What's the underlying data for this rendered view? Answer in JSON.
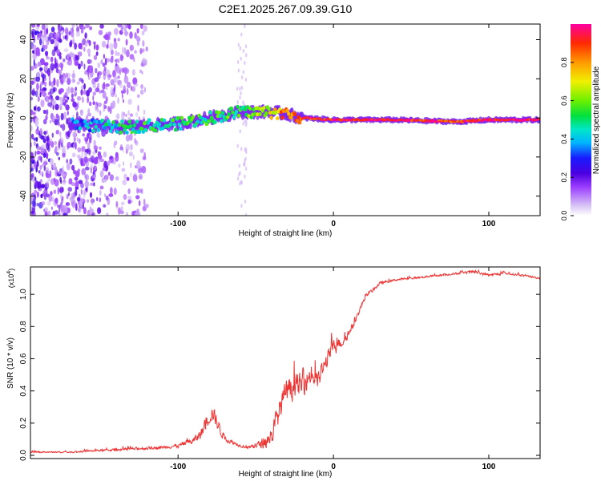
{
  "figure": {
    "title": "C2E1.2025.267.09.39.G10"
  },
  "chart_data": [
    {
      "type": "heatmap",
      "title": "C2E1.2025.267.09.39.G10",
      "xlabel": "Height of straight line (km)",
      "ylabel": "Frequency (Hz)",
      "xlim": [
        -195,
        133
      ],
      "ylim": [
        -50,
        48
      ],
      "xticks": [
        -100,
        0,
        100
      ],
      "yticks": [
        -40,
        -20,
        0,
        20,
        40
      ],
      "xtick_labels": [
        "-100",
        "0",
        "100"
      ],
      "ytick_labels": [
        "-40",
        "-20",
        "0",
        "20",
        "40"
      ],
      "colorbar": {
        "label": "Normalized spectral amplitude",
        "range": [
          0,
          1
        ],
        "ticks": [
          0.0,
          0.2,
          0.4,
          0.6,
          0.8
        ],
        "tick_labels": [
          "0.0",
          "0.2",
          "0.4",
          "0.6",
          "0.8"
        ]
      },
      "ridge": {
        "description_points_x": [
          -165,
          -140,
          -120,
          -100,
          -80,
          -60,
          -40,
          -30,
          -20,
          0,
          40,
          80,
          100,
          133
        ],
        "frequency_hz": [
          -3,
          -5,
          -4,
          -3,
          0,
          3,
          3,
          2,
          0,
          -1,
          -1,
          -2,
          -1,
          -1
        ],
        "amplitude": [
          0.35,
          0.45,
          0.5,
          0.5,
          0.5,
          0.55,
          0.7,
          0.85,
          0.9,
          0.92,
          0.95,
          0.9,
          0.95,
          0.95
        ]
      },
      "noise_region_x": [
        -195,
        -120
      ]
    },
    {
      "type": "line",
      "xlabel": "Height of straight line (km)",
      "ylabel": "SNR (10 * v/v)",
      "y_scale_label": "(x10",
      "y_scale_exponent": "4",
      "xlim": [
        -195,
        133
      ],
      "ylim": [
        -0.02,
        1.17
      ],
      "xticks": [
        -100,
        0,
        100
      ],
      "yticks": [
        0.0,
        0.2,
        0.4,
        0.6,
        0.8,
        1.0
      ],
      "xtick_labels": [
        "-100",
        "0",
        "100"
      ],
      "ytick_labels": [
        "0.0",
        "0.2",
        "0.4",
        "0.6",
        "0.8",
        "1.0"
      ],
      "series": [
        {
          "name": "SNR",
          "color": "#ee3333",
          "x": [
            -195,
            -170,
            -150,
            -130,
            -110,
            -100,
            -90,
            -85,
            -80,
            -78,
            -75,
            -70,
            -65,
            -60,
            -55,
            -50,
            -45,
            -40,
            -35,
            -30,
            -25,
            -20,
            -15,
            -10,
            -5,
            0,
            5,
            10,
            15,
            20,
            30,
            40,
            60,
            80,
            90,
            100,
            110,
            120,
            133
          ],
          "y": [
            0.02,
            0.02,
            0.03,
            0.04,
            0.05,
            0.06,
            0.09,
            0.14,
            0.24,
            0.27,
            0.2,
            0.1,
            0.08,
            0.06,
            0.05,
            0.06,
            0.08,
            0.12,
            0.28,
            0.4,
            0.42,
            0.44,
            0.5,
            0.46,
            0.58,
            0.68,
            0.7,
            0.76,
            0.86,
            0.98,
            1.07,
            1.09,
            1.11,
            1.13,
            1.14,
            1.12,
            1.13,
            1.12,
            1.1
          ],
          "noise": [
            0.01,
            0.01,
            0.015,
            0.02,
            0.02,
            0.03,
            0.05,
            0.08,
            0.1,
            0.12,
            0.1,
            0.04,
            0.03,
            0.02,
            0.02,
            0.04,
            0.08,
            0.14,
            0.18,
            0.18,
            0.18,
            0.18,
            0.16,
            0.14,
            0.12,
            0.1,
            0.08,
            0.06,
            0.04,
            0.03,
            0.02,
            0.015,
            0.015,
            0.015,
            0.02,
            0.02,
            0.015,
            0.015,
            0.015
          ]
        }
      ]
    }
  ]
}
